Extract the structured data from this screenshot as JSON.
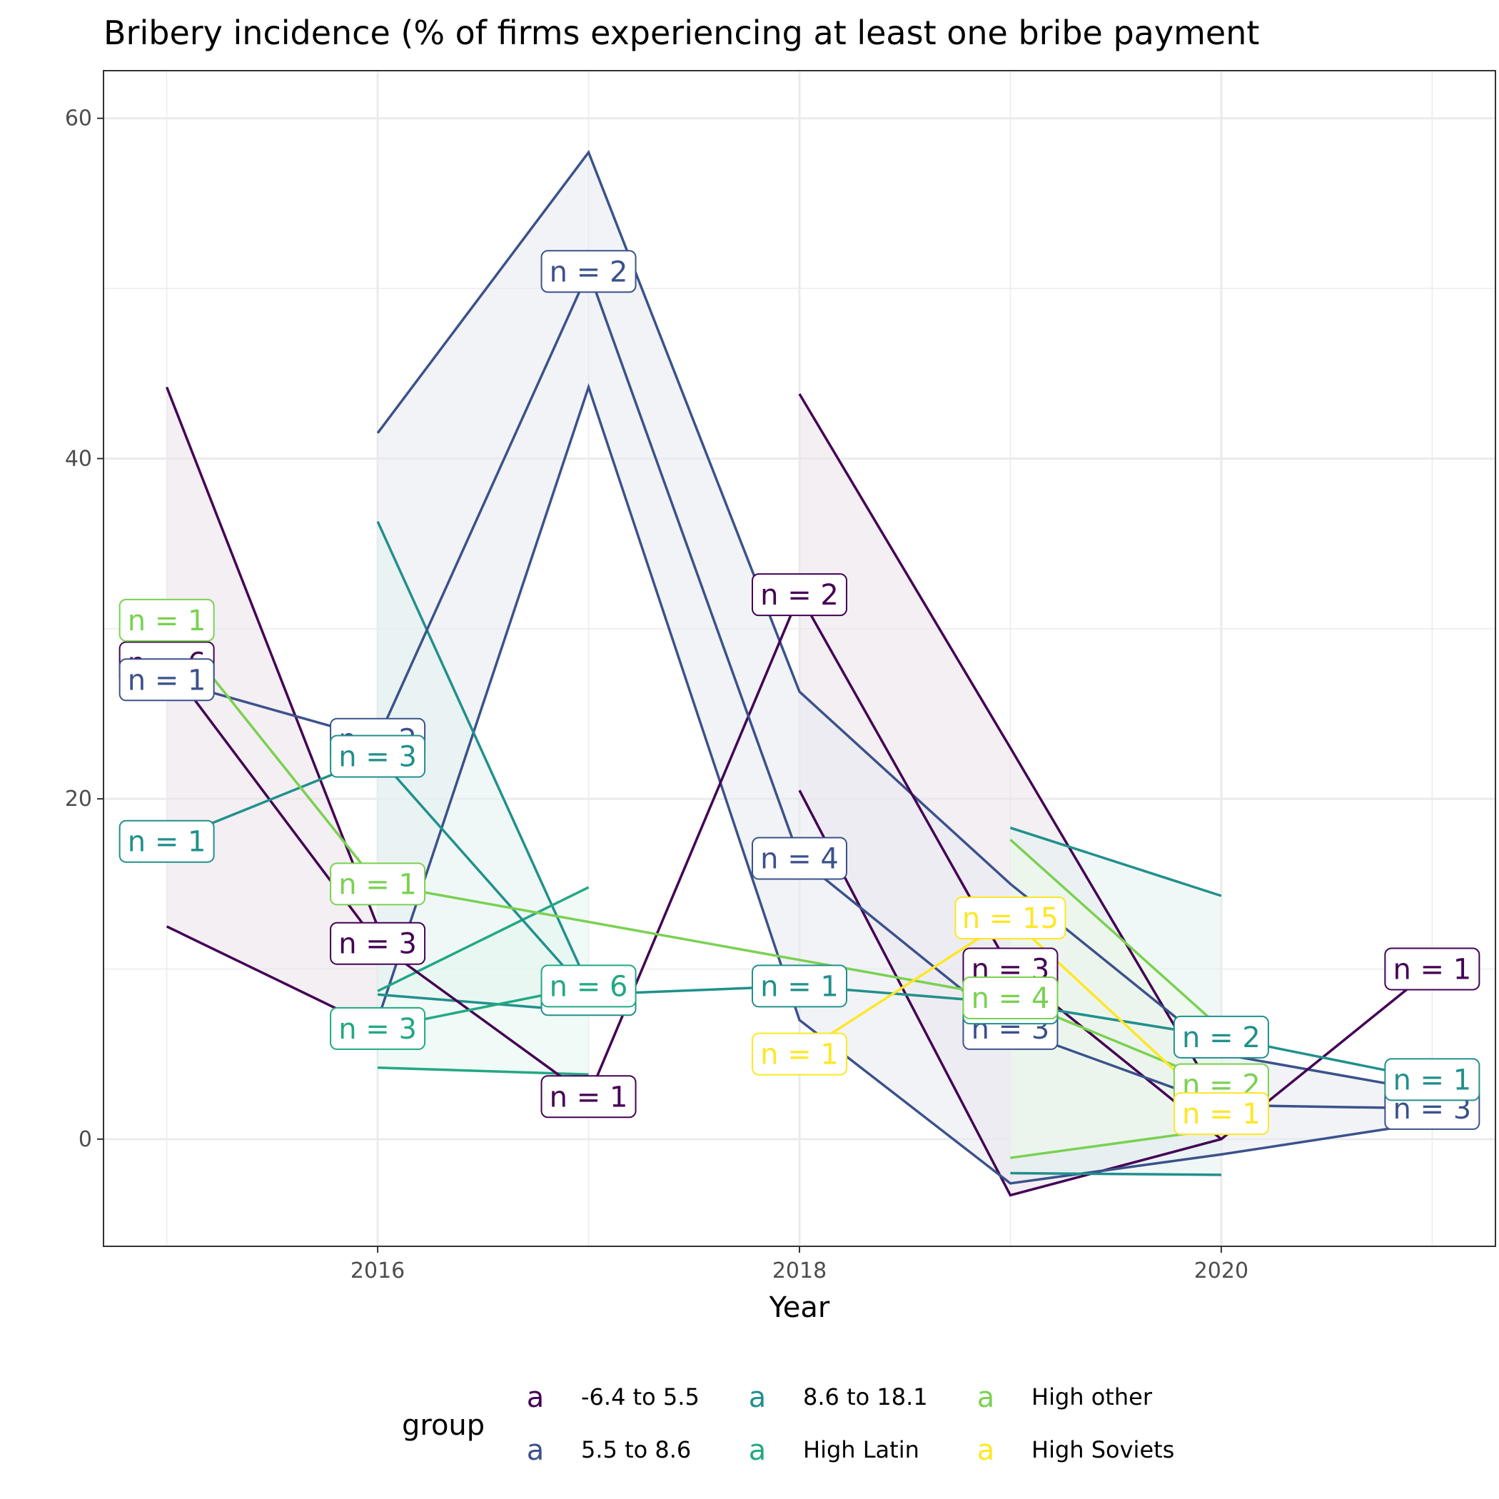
{
  "chart_data": {
    "type": "line",
    "title": "Bribery incidence (% of firms experiencing at least one bribe payment",
    "xlabel": "Year",
    "ylabel": "",
    "xlim": [
      2014.7,
      2021.3
    ],
    "ylim": [
      -6.3,
      62.8
    ],
    "x_ticks": [
      2016,
      2018,
      2020
    ],
    "y_ticks": [
      0,
      20,
      40,
      60
    ],
    "grid": true,
    "legend": {
      "title": "group",
      "position": "bottom",
      "key_glyph": "a"
    },
    "series": [
      {
        "name": "-6.4 to 5.5",
        "color": "#440154",
        "points": [
          {
            "x": 2015,
            "y": 28.0,
            "n": "n = 6"
          },
          {
            "x": 2016,
            "y": 11.5,
            "n": "n = 3"
          },
          {
            "x": 2017,
            "y": 2.5,
            "n": "n = 1"
          },
          {
            "x": 2018,
            "y": 32.0,
            "n": "n = 2"
          },
          {
            "x": 2019,
            "y": 10.0,
            "n": "n = 3"
          },
          {
            "x": 2020,
            "y": 0.0,
            "n": ""
          },
          {
            "x": 2021,
            "y": 10.0,
            "n": "n = 1"
          }
        ],
        "ribbon": [
          {
            "x": 2015,
            "lo": 12.5,
            "hi": 44.2
          },
          {
            "x": 2016,
            "lo": 6.5,
            "hi": 12.5
          },
          {
            "x": 2018,
            "lo": 20.5,
            "hi": 43.8
          },
          {
            "x": 2019,
            "lo": -3.3,
            "hi": 23.0
          },
          {
            "x": 2020,
            "lo": 0.0,
            "hi": 2.0
          }
        ]
      },
      {
        "name": "5.5 to 8.6",
        "color": "#3b528b",
        "points": [
          {
            "x": 2015,
            "y": 27.0,
            "n": "n = 1"
          },
          {
            "x": 2016,
            "y": 23.5,
            "n": "n = 2"
          },
          {
            "x": 2017,
            "y": 51.0,
            "n": "n = 2"
          },
          {
            "x": 2018,
            "y": 16.5,
            "n": "n = 4"
          },
          {
            "x": 2019,
            "y": 6.5,
            "n": "n = 3"
          },
          {
            "x": 2020,
            "y": 2.0,
            "n": ""
          },
          {
            "x": 2021,
            "y": 1.8,
            "n": "n = 3"
          }
        ],
        "ribbon": [
          {
            "x": 2016,
            "lo": 7.0,
            "hi": 41.5
          },
          {
            "x": 2017,
            "lo": 44.2,
            "hi": 58.0
          },
          {
            "x": 2018,
            "lo": 7.0,
            "hi": 26.3
          },
          {
            "x": 2019,
            "lo": -2.6,
            "hi": 15.0
          },
          {
            "x": 2020,
            "lo": -0.9,
            "hi": 5.0
          },
          {
            "x": 2021,
            "lo": 1.0,
            "hi": 2.8
          }
        ]
      },
      {
        "name": "8.6 to 18.1",
        "color": "#21908c",
        "points": [
          {
            "x": 2015,
            "y": 17.5,
            "n": "n = 1"
          },
          {
            "x": 2016,
            "y": 22.5,
            "n": "n = 3"
          },
          {
            "x": 2017,
            "y": 8.5,
            "n": "n = 1"
          },
          {
            "x": 2018,
            "y": 9.0,
            "n": "n = 1"
          },
          {
            "x": 2019,
            "y": 8.0,
            "n": "n = 2"
          },
          {
            "x": 2020,
            "y": 6.0,
            "n": "n = 2"
          },
          {
            "x": 2021,
            "y": 3.5,
            "n": "n = 1"
          }
        ],
        "ribbon": [
          {
            "x": 2016,
            "lo": 8.5,
            "hi": 36.3
          },
          {
            "x": 2017,
            "lo": 7.5,
            "hi": 9.0
          },
          {
            "x": 2019,
            "lo": -2.0,
            "hi": 18.3
          },
          {
            "x": 2020,
            "lo": -2.1,
            "hi": 14.3
          }
        ]
      },
      {
        "name": "High Latin",
        "color": "#22a884",
        "points": [
          {
            "x": 2016,
            "y": 6.5,
            "n": "n = 3"
          },
          {
            "x": 2017,
            "y": 9.0,
            "n": "n = 6"
          }
        ],
        "ribbon": [
          {
            "x": 2016,
            "lo": 4.2,
            "hi": 8.7
          },
          {
            "x": 2017,
            "lo": 3.8,
            "hi": 14.8
          }
        ]
      },
      {
        "name": "High other",
        "color": "#7ad151",
        "points": [
          {
            "x": 2015,
            "y": 30.5,
            "n": "n = 1"
          },
          {
            "x": 2016,
            "y": 15.0,
            "n": "n = 1"
          },
          {
            "x": 2019,
            "y": 8.3,
            "n": "n = 4"
          },
          {
            "x": 2020,
            "y": 3.2,
            "n": "n = 2"
          }
        ],
        "ribbon": [
          {
            "x": 2019,
            "lo": -1.1,
            "hi": 17.6
          },
          {
            "x": 2020,
            "lo": 0.6,
            "hi": 6.5
          }
        ]
      },
      {
        "name": "High Soviets",
        "color": "#fde725",
        "points": [
          {
            "x": 2018,
            "y": 5.0,
            "n": "n = 1"
          },
          {
            "x": 2019,
            "y": 13.0,
            "n": "n = 15"
          },
          {
            "x": 2020,
            "y": 1.5,
            "n": "n = 1"
          }
        ],
        "ribbon": []
      }
    ]
  }
}
